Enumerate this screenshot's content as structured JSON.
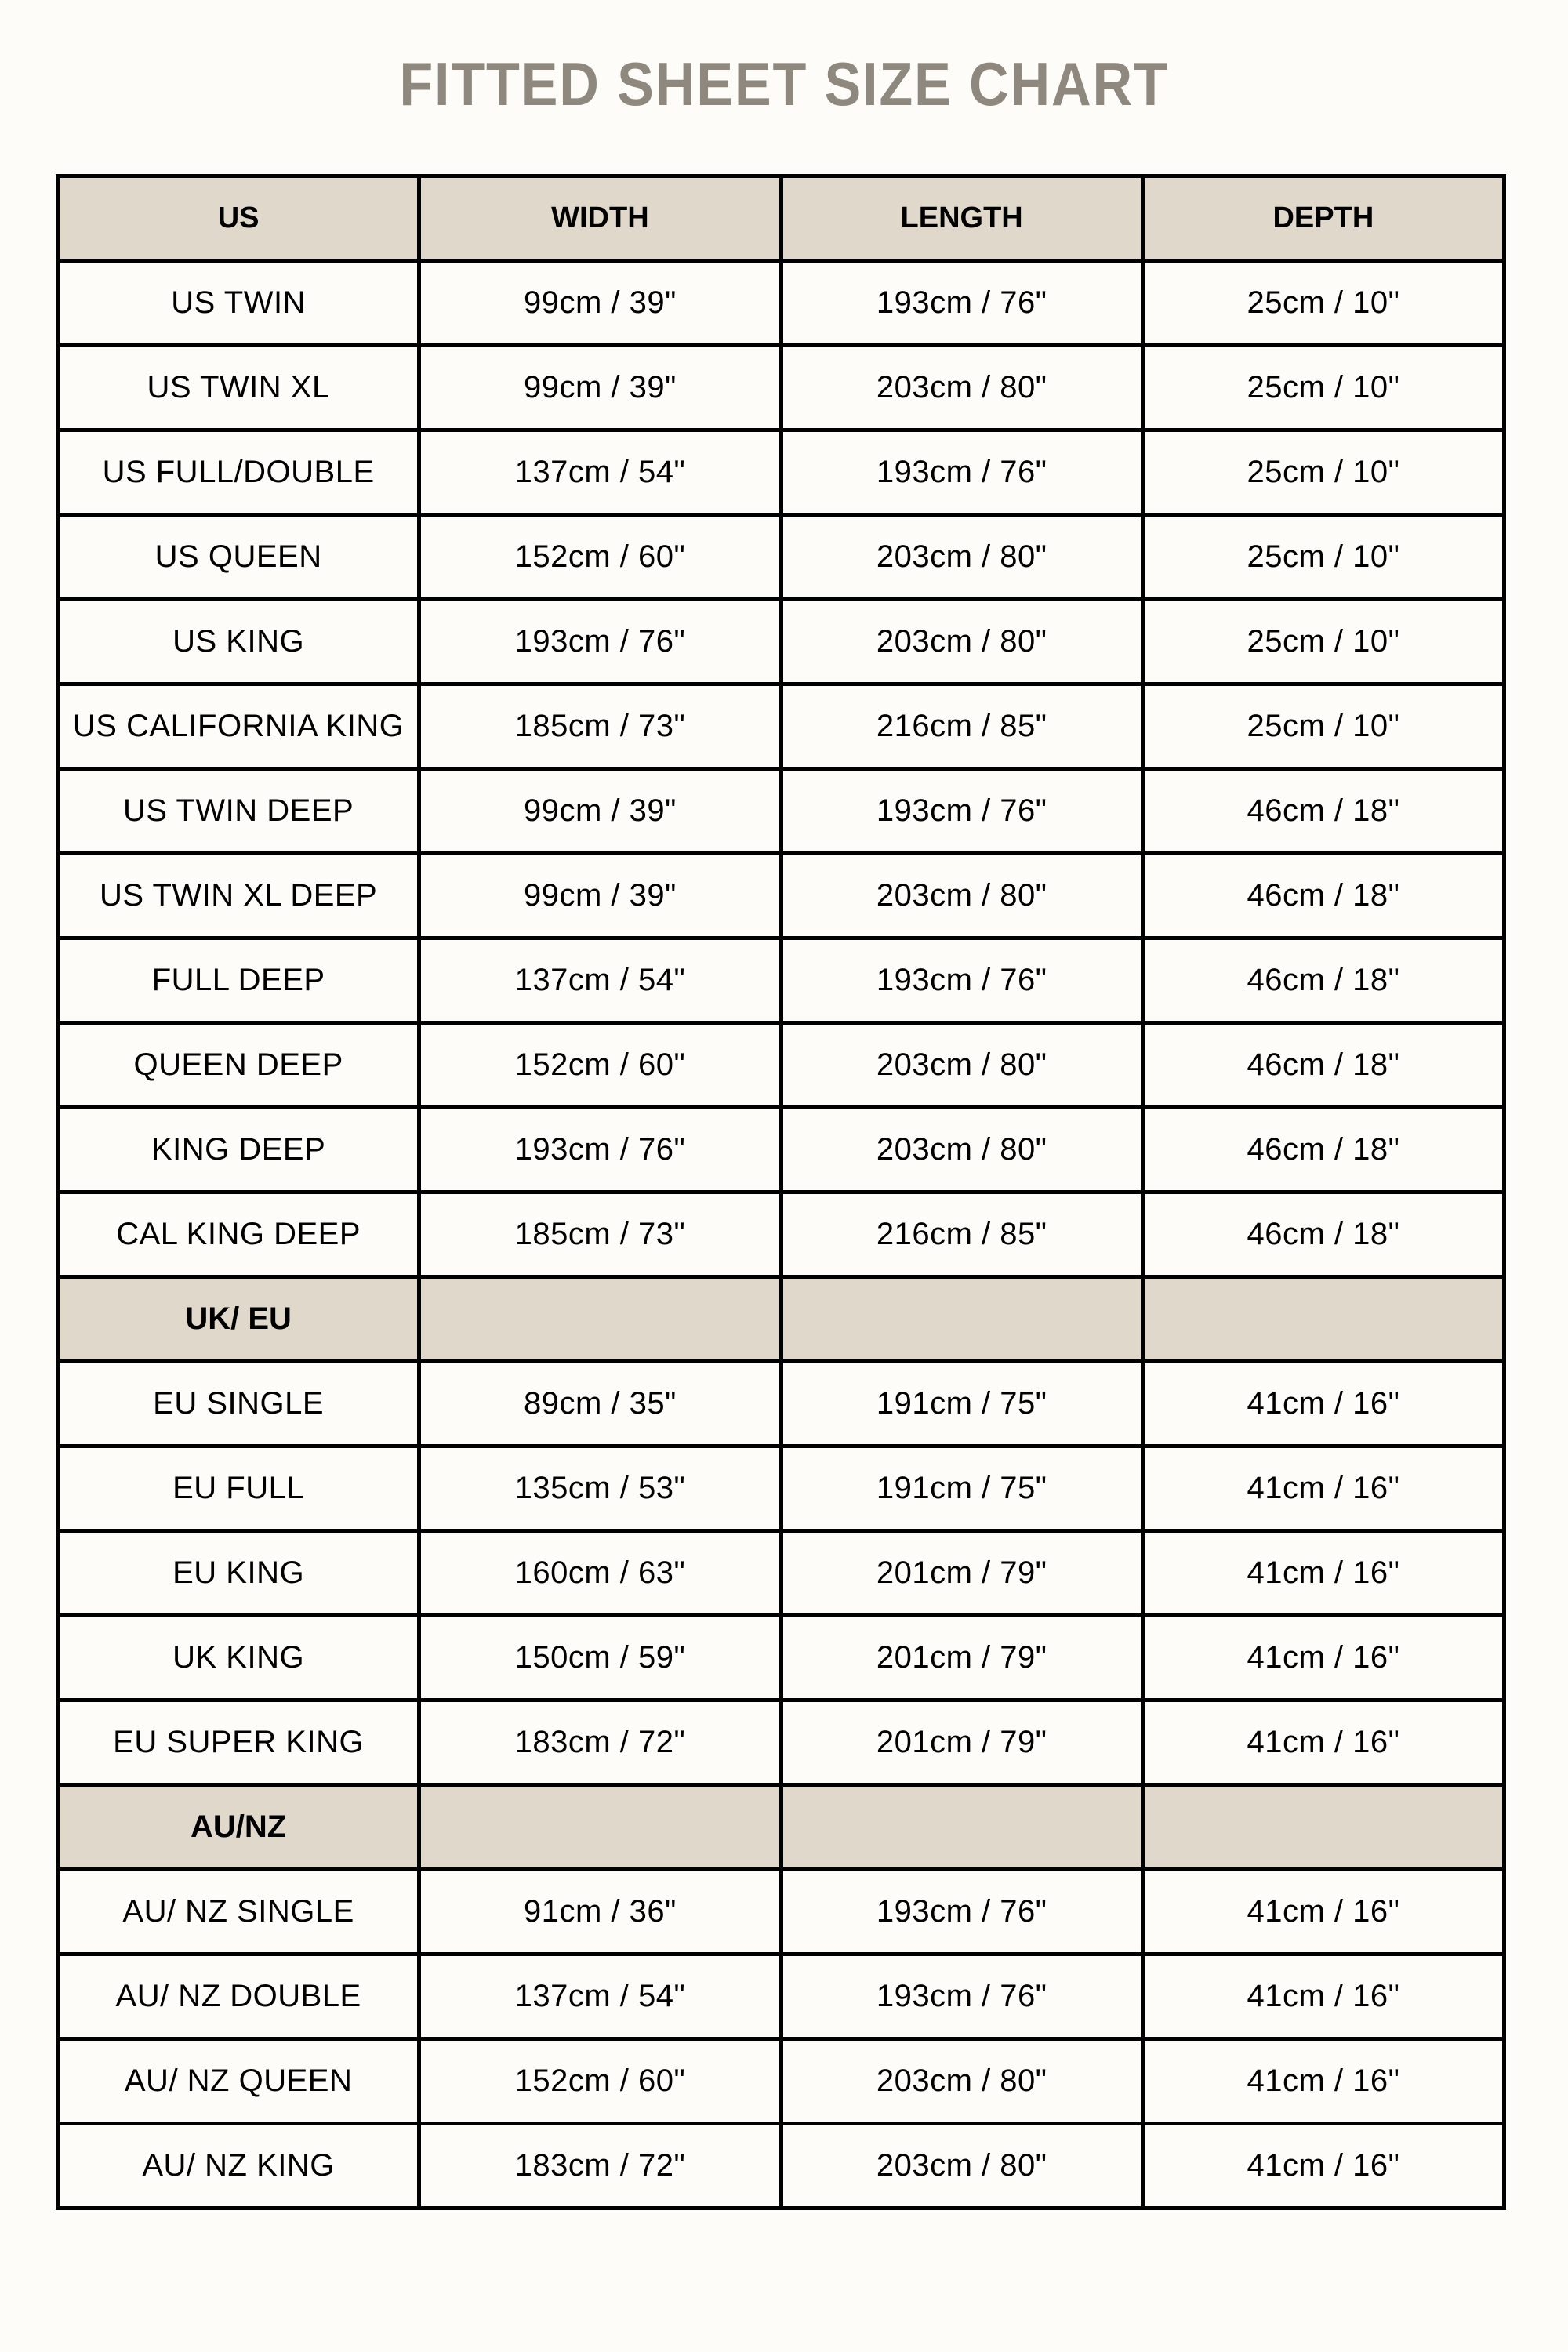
{
  "title": "FITTED SHEET SIZE CHART",
  "colors": {
    "title": "#8e887e",
    "header_bg": "#e0d8cb",
    "border": "#000000",
    "background": "#fdfcf8"
  },
  "columns": [
    "US",
    "WIDTH",
    "LENGTH",
    "DEPTH"
  ],
  "sections": [
    {
      "label": null,
      "rows": [
        [
          "US TWIN",
          "99cm / 39\"",
          "193cm / 76\"",
          "25cm / 10\""
        ],
        [
          "US TWIN XL",
          "99cm / 39\"",
          "203cm / 80\"",
          "25cm / 10\""
        ],
        [
          "US FULL/DOUBLE",
          "137cm / 54\"",
          "193cm / 76\"",
          "25cm / 10\""
        ],
        [
          "US QUEEN",
          "152cm / 60\"",
          "203cm / 80\"",
          "25cm / 10\""
        ],
        [
          "US KING",
          "193cm / 76\"",
          "203cm / 80\"",
          "25cm / 10\""
        ],
        [
          "US CALIFORNIA KING",
          "185cm / 73\"",
          "216cm / 85\"",
          "25cm / 10\""
        ],
        [
          "US TWIN DEEP",
          "99cm / 39\"",
          "193cm / 76\"",
          "46cm / 18\""
        ],
        [
          "US TWIN XL DEEP",
          "99cm / 39\"",
          "203cm / 80\"",
          "46cm / 18\""
        ],
        [
          "FULL DEEP",
          "137cm / 54\"",
          "193cm / 76\"",
          "46cm / 18\""
        ],
        [
          "QUEEN DEEP",
          "152cm / 60\"",
          "203cm / 80\"",
          "46cm / 18\""
        ],
        [
          "KING DEEP",
          "193cm / 76\"",
          "203cm / 80\"",
          "46cm / 18\""
        ],
        [
          "CAL KING DEEP",
          "185cm / 73\"",
          "216cm / 85\"",
          "46cm / 18\""
        ]
      ]
    },
    {
      "label": "UK/ EU",
      "rows": [
        [
          "EU SINGLE",
          "89cm / 35\"",
          "191cm / 75\"",
          "41cm / 16\""
        ],
        [
          "EU FULL",
          "135cm / 53\"",
          "191cm / 75\"",
          "41cm / 16\""
        ],
        [
          "EU KING",
          "160cm / 63\"",
          "201cm / 79\"",
          "41cm / 16\""
        ],
        [
          "UK KING",
          "150cm / 59\"",
          "201cm / 79\"",
          "41cm / 16\""
        ],
        [
          "EU SUPER KING",
          "183cm / 72\"",
          "201cm / 79\"",
          "41cm / 16\""
        ]
      ]
    },
    {
      "label": "AU/NZ",
      "rows": [
        [
          "AU/ NZ SINGLE",
          "91cm / 36\"",
          "193cm / 76\"",
          "41cm / 16\""
        ],
        [
          "AU/ NZ DOUBLE",
          "137cm / 54\"",
          "193cm / 76\"",
          "41cm / 16\""
        ],
        [
          "AU/ NZ QUEEN",
          "152cm / 60\"",
          "203cm / 80\"",
          "41cm / 16\""
        ],
        [
          "AU/ NZ KING",
          "183cm / 72\"",
          "203cm / 80\"",
          "41cm / 16\""
        ]
      ]
    }
  ]
}
